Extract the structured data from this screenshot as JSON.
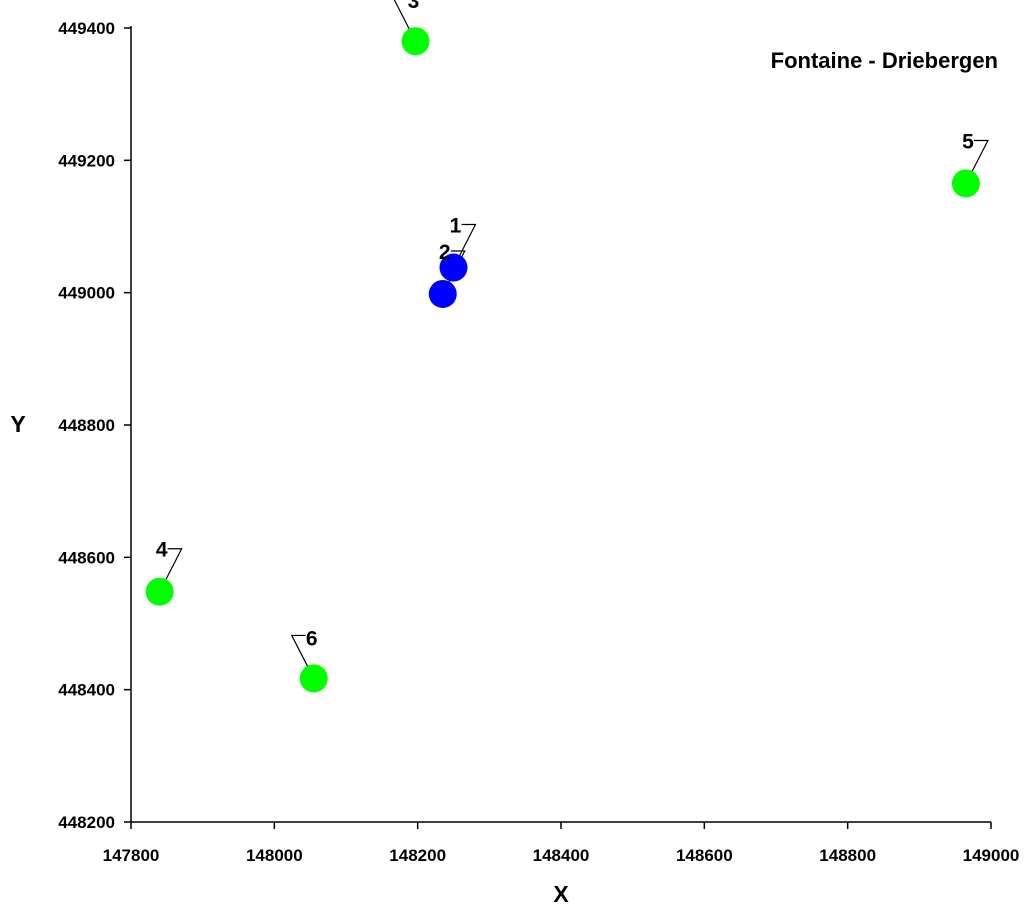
{
  "chart_data": {
    "type": "scatter",
    "title": "Fontaine - Driebergen",
    "xlabel": "X",
    "ylabel": "Y",
    "xlim": [
      147800,
      149000
    ],
    "ylim": [
      448200,
      449400
    ],
    "x_ticks": [
      "147800",
      "148000",
      "148200",
      "148400",
      "148600",
      "148800",
      "149000"
    ],
    "y_ticks": [
      "448200",
      "448400",
      "448600",
      "448800",
      "449000",
      "449200",
      "449400"
    ],
    "grid": false,
    "colors": {
      "blue": "#0000ff",
      "green": "#00ff00"
    },
    "points": [
      {
        "label": "1",
        "x": 148250,
        "y": 449038,
        "color": "#0000ff",
        "leader": "up-right"
      },
      {
        "label": "2",
        "x": 148235,
        "y": 448998,
        "color": "#0000ff",
        "leader": "up-right"
      },
      {
        "label": "3",
        "x": 148197,
        "y": 449380,
        "color": "#00ff00",
        "leader": "up-left"
      },
      {
        "label": "4",
        "x": 147840,
        "y": 448548,
        "color": "#00ff00",
        "leader": "up-right"
      },
      {
        "label": "5",
        "x": 148965,
        "y": 449165,
        "color": "#00ff00",
        "leader": "up-right"
      },
      {
        "label": "6",
        "x": 148055,
        "y": 448417,
        "color": "#00ff00",
        "leader": "up-left"
      }
    ]
  }
}
